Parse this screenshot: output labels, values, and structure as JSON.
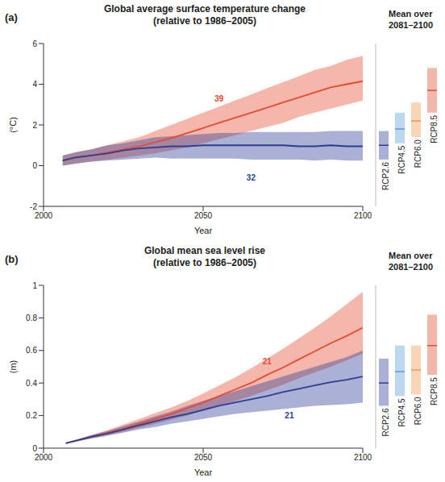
{
  "chart_data": [
    {
      "type": "line",
      "panel_label": "(a)",
      "title": "Global average surface temperature change",
      "subtitle": "(relative to 1986–2005)",
      "x_label": "Year",
      "y_label": "(°C)",
      "grid": false,
      "x": [
        2006,
        2010,
        2015,
        2020,
        2025,
        2030,
        2035,
        2040,
        2045,
        2050,
        2055,
        2060,
        2065,
        2070,
        2075,
        2080,
        2085,
        2090,
        2095,
        2100
      ],
      "xlim": [
        2000,
        2100
      ],
      "xticks": [
        2000,
        2050,
        2100
      ],
      "ylim": [
        -2,
        6
      ],
      "yticks": [
        -2,
        0,
        2,
        4,
        6
      ],
      "series": [
        {
          "color": "#e64a2e",
          "values": [
            0.25,
            0.4,
            0.5,
            0.65,
            0.8,
            0.95,
            1.15,
            1.35,
            1.6,
            1.85,
            2.1,
            2.35,
            2.6,
            2.85,
            3.1,
            3.35,
            3.6,
            3.85,
            4.0,
            4.15
          ],
          "low": [
            0.0,
            0.1,
            0.2,
            0.3,
            0.4,
            0.5,
            0.6,
            0.75,
            0.9,
            1.1,
            1.3,
            1.5,
            1.7,
            1.9,
            2.1,
            2.4,
            2.6,
            2.8,
            3.0,
            3.2
          ],
          "high": [
            0.5,
            0.65,
            0.8,
            1.0,
            1.2,
            1.4,
            1.7,
            2.0,
            2.3,
            2.6,
            2.9,
            3.2,
            3.5,
            3.8,
            4.1,
            4.4,
            4.7,
            4.9,
            5.2,
            5.4
          ]
        },
        {
          "color": "#2d3d96",
          "values": [
            0.25,
            0.4,
            0.5,
            0.6,
            0.75,
            0.85,
            0.9,
            0.95,
            0.95,
            1.0,
            1.0,
            1.0,
            1.0,
            1.0,
            1.0,
            0.95,
            0.95,
            1.0,
            0.95,
            0.95
          ],
          "low": [
            0.0,
            0.1,
            0.2,
            0.25,
            0.3,
            0.35,
            0.4,
            0.35,
            0.35,
            0.35,
            0.35,
            0.35,
            0.3,
            0.3,
            0.3,
            0.3,
            0.25,
            0.3,
            0.25,
            0.25
          ],
          "high": [
            0.5,
            0.65,
            0.8,
            1.0,
            1.1,
            1.25,
            1.4,
            1.45,
            1.5,
            1.55,
            1.6,
            1.6,
            1.65,
            1.65,
            1.65,
            1.65,
            1.65,
            1.7,
            1.7,
            1.7
          ]
        }
      ],
      "annotations": [
        {
          "text": "39",
          "x": 2055,
          "y": 3.3,
          "color": "#e64a2e"
        },
        {
          "text": "32",
          "x": 2065,
          "y": -0.6,
          "color": "#2d3d96"
        }
      ]
    },
    {
      "type": "bar",
      "title": "Mean over 2081–2100",
      "categories": [
        "RCP2.6",
        "RCP4.5",
        "RCP6.0",
        "RCP8.5"
      ],
      "values": [
        1.0,
        1.8,
        2.2,
        3.7
      ],
      "low": [
        0.3,
        1.1,
        1.4,
        2.6
      ],
      "high": [
        1.7,
        2.6,
        3.1,
        4.8
      ],
      "colors": [
        "#2d3d96",
        "#5b9bd5",
        "#f0954a",
        "#e64a2e"
      ],
      "ylim": [
        -2,
        6
      ],
      "tick_labels": false
    },
    {
      "type": "line",
      "panel_label": "(b)",
      "title": "Global mean sea level rise",
      "subtitle": "(relative to 1986–2005)",
      "x_label": "Year",
      "y_label": "(m)",
      "grid": false,
      "x": [
        2007,
        2010,
        2015,
        2020,
        2025,
        2030,
        2035,
        2040,
        2045,
        2050,
        2055,
        2060,
        2065,
        2070,
        2075,
        2080,
        2085,
        2090,
        2095,
        2100
      ],
      "xlim": [
        2000,
        2100
      ],
      "xticks": [
        2000,
        2050,
        2100
      ],
      "ylim": [
        0,
        1
      ],
      "yticks": [
        0,
        0.2,
        0.4,
        0.6,
        0.8,
        1
      ],
      "series": [
        {
          "color": "#e64a2e",
          "values": [
            0.03,
            0.045,
            0.07,
            0.095,
            0.12,
            0.15,
            0.18,
            0.21,
            0.245,
            0.28,
            0.32,
            0.36,
            0.4,
            0.45,
            0.495,
            0.545,
            0.595,
            0.645,
            0.69,
            0.74
          ],
          "low": [
            0.03,
            0.04,
            0.06,
            0.08,
            0.1,
            0.125,
            0.15,
            0.175,
            0.2,
            0.23,
            0.26,
            0.29,
            0.32,
            0.355,
            0.39,
            0.43,
            0.465,
            0.5,
            0.54,
            0.58
          ],
          "high": [
            0.03,
            0.05,
            0.08,
            0.11,
            0.145,
            0.18,
            0.215,
            0.25,
            0.29,
            0.335,
            0.385,
            0.435,
            0.49,
            0.55,
            0.61,
            0.675,
            0.74,
            0.81,
            0.885,
            0.96
          ]
        },
        {
          "color": "#2d3d96",
          "values": [
            0.03,
            0.045,
            0.07,
            0.09,
            0.115,
            0.14,
            0.165,
            0.19,
            0.21,
            0.235,
            0.26,
            0.28,
            0.3,
            0.32,
            0.345,
            0.365,
            0.385,
            0.405,
            0.42,
            0.44
          ],
          "low": [
            0.03,
            0.04,
            0.06,
            0.075,
            0.095,
            0.115,
            0.13,
            0.15,
            0.165,
            0.18,
            0.195,
            0.21,
            0.22,
            0.23,
            0.24,
            0.25,
            0.26,
            0.265,
            0.27,
            0.28
          ],
          "high": [
            0.03,
            0.05,
            0.08,
            0.105,
            0.135,
            0.165,
            0.195,
            0.225,
            0.26,
            0.29,
            0.32,
            0.35,
            0.38,
            0.41,
            0.44,
            0.47,
            0.5,
            0.53,
            0.56,
            0.6
          ]
        }
      ],
      "annotations": [
        {
          "text": "21",
          "x": 2070,
          "y": 0.53,
          "color": "#e64a2e"
        },
        {
          "text": "21",
          "x": 2077,
          "y": 0.2,
          "color": "#2d3d96"
        }
      ]
    },
    {
      "type": "bar",
      "title": "Mean over 2081–2100",
      "categories": [
        "RCP2.6",
        "RCP4.5",
        "RCP6.0",
        "RCP8.5"
      ],
      "values": [
        0.4,
        0.47,
        0.48,
        0.63
      ],
      "low": [
        0.26,
        0.32,
        0.33,
        0.45
      ],
      "high": [
        0.55,
        0.63,
        0.63,
        0.82
      ],
      "colors": [
        "#2d3d96",
        "#5b9bd5",
        "#f0954a",
        "#e64a2e"
      ],
      "ylim": [
        0,
        1
      ],
      "tick_labels": false
    }
  ]
}
